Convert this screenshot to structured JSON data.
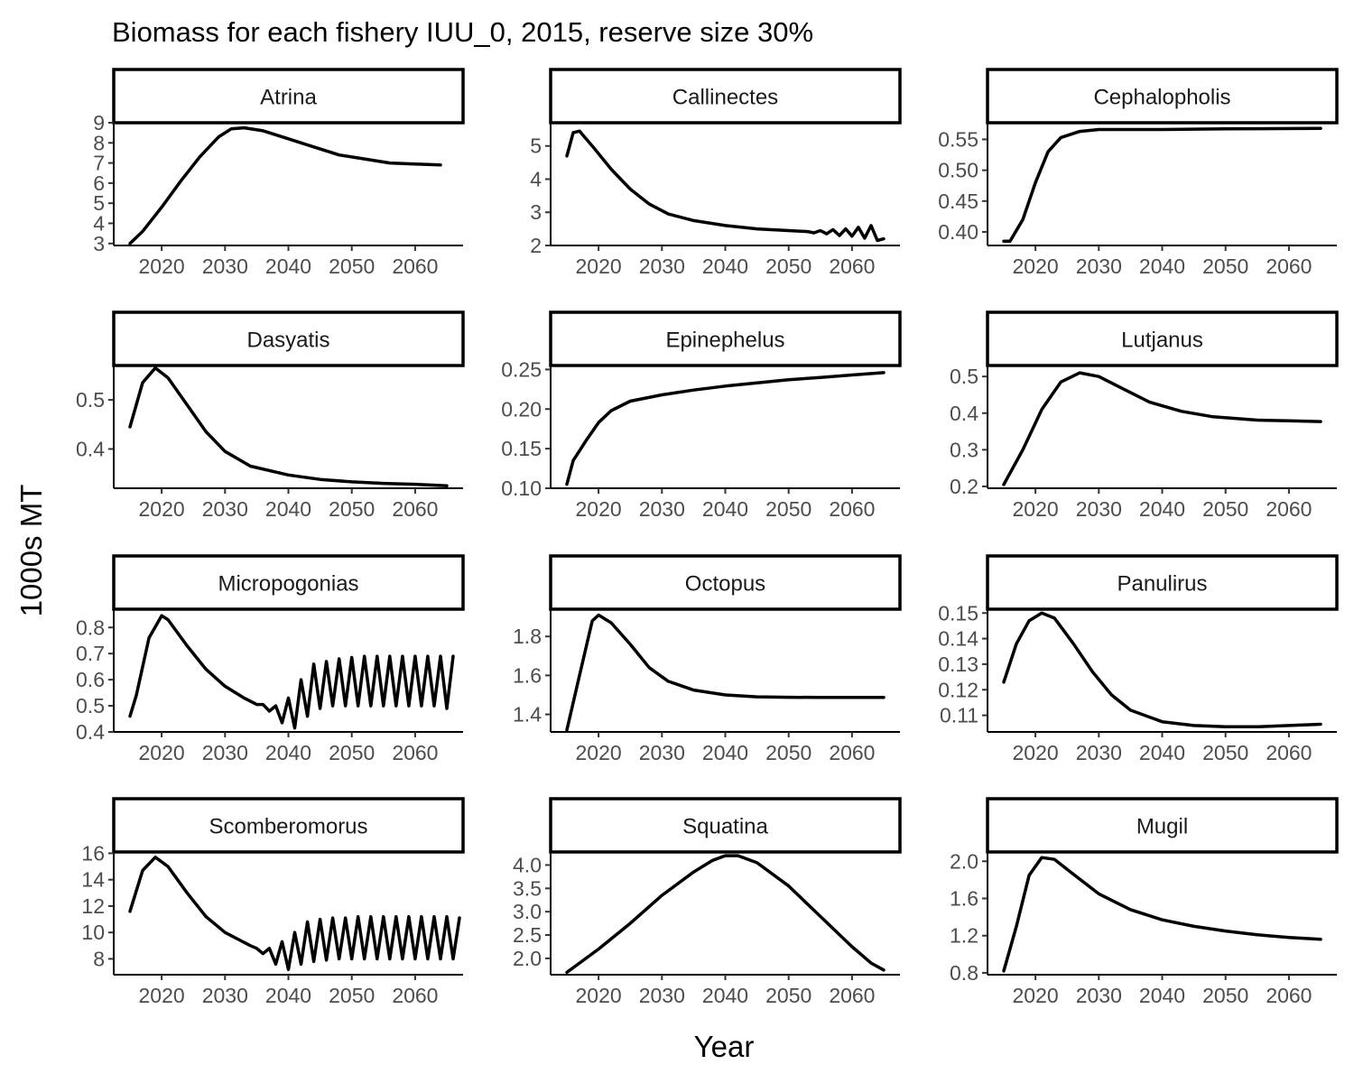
{
  "chart_data": {
    "type": "line",
    "title": "Biomass for each fishery IUU_0, 2015, reserve size 30%",
    "xlabel": "Year",
    "ylabel": "1000s MT",
    "x_ticks": [
      2020,
      2030,
      2040,
      2050,
      2060
    ],
    "xlim": [
      2015,
      2065
    ],
    "grid": false,
    "line_color": "#000000",
    "panels": [
      {
        "name": "Atrina",
        "ylim": [
          2.9,
          9.0
        ],
        "y_ticks": [
          3,
          4,
          5,
          6,
          7,
          8,
          9
        ],
        "y_tick_labels": [
          "3",
          "4",
          "5",
          "6",
          "7",
          "8",
          "9"
        ],
        "points": [
          [
            2015,
            3.0
          ],
          [
            2017,
            3.6
          ],
          [
            2020,
            4.8
          ],
          [
            2023,
            6.1
          ],
          [
            2026,
            7.3
          ],
          [
            2029,
            8.3
          ],
          [
            2031,
            8.7
          ],
          [
            2033,
            8.75
          ],
          [
            2036,
            8.6
          ],
          [
            2040,
            8.2
          ],
          [
            2044,
            7.8
          ],
          [
            2048,
            7.4
          ],
          [
            2052,
            7.2
          ],
          [
            2056,
            7.0
          ],
          [
            2060,
            6.95
          ],
          [
            2064,
            6.9
          ]
        ]
      },
      {
        "name": "Callinectes",
        "ylim": [
          2.0,
          5.7
        ],
        "y_ticks": [
          2,
          3,
          4,
          5
        ],
        "y_tick_labels": [
          "2",
          "3",
          "4",
          "5"
        ],
        "points": [
          [
            2015,
            4.7
          ],
          [
            2016,
            5.4
          ],
          [
            2017,
            5.45
          ],
          [
            2019,
            5.0
          ],
          [
            2022,
            4.3
          ],
          [
            2025,
            3.7
          ],
          [
            2028,
            3.25
          ],
          [
            2031,
            2.95
          ],
          [
            2035,
            2.75
          ],
          [
            2040,
            2.6
          ],
          [
            2045,
            2.5
          ],
          [
            2050,
            2.45
          ],
          [
            2053,
            2.42
          ],
          [
            2054,
            2.38
          ],
          [
            2055,
            2.45
          ],
          [
            2056,
            2.35
          ],
          [
            2057,
            2.48
          ],
          [
            2058,
            2.3
          ],
          [
            2059,
            2.5
          ],
          [
            2060,
            2.28
          ],
          [
            2061,
            2.55
          ],
          [
            2062,
            2.22
          ],
          [
            2063,
            2.6
          ],
          [
            2064,
            2.15
          ],
          [
            2065,
            2.2
          ]
        ]
      },
      {
        "name": "Cephalopholis",
        "ylim": [
          0.378,
          0.577
        ],
        "y_ticks": [
          0.4,
          0.45,
          0.5,
          0.55
        ],
        "y_tick_labels": [
          "0.40",
          "0.45",
          "0.50",
          "0.55"
        ],
        "points": [
          [
            2015,
            0.385
          ],
          [
            2016,
            0.385
          ],
          [
            2018,
            0.42
          ],
          [
            2020,
            0.48
          ],
          [
            2022,
            0.53
          ],
          [
            2024,
            0.553
          ],
          [
            2027,
            0.563
          ],
          [
            2030,
            0.566
          ],
          [
            2035,
            0.566
          ],
          [
            2040,
            0.566
          ],
          [
            2050,
            0.567
          ],
          [
            2065,
            0.568
          ]
        ]
      },
      {
        "name": "Dasyatis",
        "ylim": [
          0.32,
          0.57
        ],
        "y_ticks": [
          0.4,
          0.5
        ],
        "y_tick_labels": [
          "0.4",
          "0.5"
        ],
        "points": [
          [
            2015,
            0.445
          ],
          [
            2017,
            0.535
          ],
          [
            2019,
            0.565
          ],
          [
            2021,
            0.545
          ],
          [
            2024,
            0.49
          ],
          [
            2027,
            0.435
          ],
          [
            2030,
            0.395
          ],
          [
            2034,
            0.365
          ],
          [
            2040,
            0.347
          ],
          [
            2045,
            0.338
          ],
          [
            2050,
            0.333
          ],
          [
            2055,
            0.33
          ],
          [
            2060,
            0.328
          ],
          [
            2065,
            0.325
          ]
        ]
      },
      {
        "name": "Epinephelus",
        "ylim": [
          0.1,
          0.255
        ],
        "y_ticks": [
          0.1,
          0.15,
          0.2,
          0.25
        ],
        "y_tick_labels": [
          "0.10",
          "0.15",
          "0.20",
          "0.25"
        ],
        "points": [
          [
            2015,
            0.105
          ],
          [
            2016,
            0.135
          ],
          [
            2018,
            0.16
          ],
          [
            2020,
            0.183
          ],
          [
            2022,
            0.198
          ],
          [
            2025,
            0.21
          ],
          [
            2030,
            0.218
          ],
          [
            2035,
            0.224
          ],
          [
            2040,
            0.229
          ],
          [
            2045,
            0.233
          ],
          [
            2050,
            0.237
          ],
          [
            2055,
            0.24
          ],
          [
            2060,
            0.243
          ],
          [
            2065,
            0.246
          ]
        ]
      },
      {
        "name": "Lutjanus",
        "ylim": [
          0.195,
          0.53
        ],
        "y_ticks": [
          0.2,
          0.3,
          0.4,
          0.5
        ],
        "y_tick_labels": [
          "0.2",
          "0.3",
          "0.4",
          "0.5"
        ],
        "points": [
          [
            2015,
            0.205
          ],
          [
            2018,
            0.3
          ],
          [
            2021,
            0.41
          ],
          [
            2024,
            0.485
          ],
          [
            2027,
            0.51
          ],
          [
            2030,
            0.5
          ],
          [
            2034,
            0.465
          ],
          [
            2038,
            0.43
          ],
          [
            2043,
            0.405
          ],
          [
            2048,
            0.39
          ],
          [
            2055,
            0.381
          ],
          [
            2060,
            0.379
          ],
          [
            2065,
            0.377
          ]
        ]
      },
      {
        "name": "Micropogonias",
        "ylim": [
          0.4,
          0.87
        ],
        "y_ticks": [
          0.4,
          0.5,
          0.6,
          0.7,
          0.8
        ],
        "y_tick_labels": [
          "0.4",
          "0.5",
          "0.6",
          "0.7",
          "0.8"
        ],
        "points": [
          [
            2015,
            0.46
          ],
          [
            2016,
            0.54
          ],
          [
            2018,
            0.76
          ],
          [
            2020,
            0.845
          ],
          [
            2021,
            0.83
          ],
          [
            2024,
            0.73
          ],
          [
            2027,
            0.64
          ],
          [
            2030,
            0.575
          ],
          [
            2033,
            0.53
          ],
          [
            2035,
            0.505
          ],
          [
            2036,
            0.505
          ],
          [
            2037,
            0.48
          ],
          [
            2038,
            0.5
          ],
          [
            2039,
            0.435
          ],
          [
            2040,
            0.53
          ],
          [
            2041,
            0.415
          ],
          [
            2042,
            0.6
          ],
          [
            2043,
            0.46
          ],
          [
            2044,
            0.66
          ],
          [
            2045,
            0.49
          ],
          [
            2046,
            0.67
          ],
          [
            2047,
            0.5
          ],
          [
            2048,
            0.68
          ],
          [
            2049,
            0.5
          ],
          [
            2050,
            0.685
          ],
          [
            2051,
            0.5
          ],
          [
            2052,
            0.69
          ],
          [
            2053,
            0.5
          ],
          [
            2054,
            0.69
          ],
          [
            2055,
            0.5
          ],
          [
            2056,
            0.69
          ],
          [
            2057,
            0.5
          ],
          [
            2058,
            0.69
          ],
          [
            2059,
            0.5
          ],
          [
            2060,
            0.69
          ],
          [
            2061,
            0.5
          ],
          [
            2062,
            0.69
          ],
          [
            2063,
            0.5
          ],
          [
            2064,
            0.69
          ],
          [
            2065,
            0.49
          ],
          [
            2066,
            0.69
          ]
        ]
      },
      {
        "name": "Octopus",
        "ylim": [
          1.31,
          1.94
        ],
        "y_ticks": [
          1.4,
          1.6,
          1.8
        ],
        "y_tick_labels": [
          "1.4",
          "1.6",
          "1.8"
        ],
        "points": [
          [
            2015,
            1.32
          ],
          [
            2017,
            1.6
          ],
          [
            2019,
            1.88
          ],
          [
            2020,
            1.91
          ],
          [
            2022,
            1.87
          ],
          [
            2025,
            1.76
          ],
          [
            2028,
            1.64
          ],
          [
            2031,
            1.57
          ],
          [
            2035,
            1.525
          ],
          [
            2040,
            1.5
          ],
          [
            2045,
            1.49
          ],
          [
            2050,
            1.488
          ],
          [
            2055,
            1.487
          ],
          [
            2060,
            1.487
          ],
          [
            2065,
            1.487
          ]
        ]
      },
      {
        "name": "Panulirus",
        "ylim": [
          0.1035,
          0.1515
        ],
        "y_ticks": [
          0.11,
          0.12,
          0.13,
          0.14,
          0.15
        ],
        "y_tick_labels": [
          "0.11",
          "0.12",
          "0.13",
          "0.14",
          "0.15"
        ],
        "points": [
          [
            2015,
            0.123
          ],
          [
            2017,
            0.138
          ],
          [
            2019,
            0.147
          ],
          [
            2021,
            0.15
          ],
          [
            2023,
            0.148
          ],
          [
            2026,
            0.138
          ],
          [
            2029,
            0.127
          ],
          [
            2032,
            0.118
          ],
          [
            2035,
            0.112
          ],
          [
            2040,
            0.1075
          ],
          [
            2045,
            0.106
          ],
          [
            2050,
            0.1055
          ],
          [
            2055,
            0.1055
          ],
          [
            2060,
            0.106
          ],
          [
            2065,
            0.1065
          ]
        ]
      },
      {
        "name": "Scomberomorus",
        "ylim": [
          6.8,
          16.1
        ],
        "y_ticks": [
          8,
          10,
          12,
          14,
          16
        ],
        "y_tick_labels": [
          "8",
          "10",
          "12",
          "14",
          "16"
        ],
        "points": [
          [
            2015,
            11.6
          ],
          [
            2017,
            14.7
          ],
          [
            2019,
            15.7
          ],
          [
            2021,
            15.0
          ],
          [
            2024,
            13.0
          ],
          [
            2027,
            11.2
          ],
          [
            2030,
            10.0
          ],
          [
            2032,
            9.5
          ],
          [
            2034,
            9.0
          ],
          [
            2035,
            8.8
          ],
          [
            2036,
            8.4
          ],
          [
            2037,
            8.8
          ],
          [
            2038,
            7.6
          ],
          [
            2039,
            9.3
          ],
          [
            2040,
            7.2
          ],
          [
            2041,
            10.0
          ],
          [
            2042,
            7.6
          ],
          [
            2043,
            10.8
          ],
          [
            2044,
            7.8
          ],
          [
            2045,
            11.0
          ],
          [
            2046,
            7.9
          ],
          [
            2047,
            11.1
          ],
          [
            2048,
            8.0
          ],
          [
            2049,
            11.1
          ],
          [
            2050,
            8.0
          ],
          [
            2051,
            11.2
          ],
          [
            2052,
            8.0
          ],
          [
            2053,
            11.2
          ],
          [
            2054,
            8.0
          ],
          [
            2055,
            11.2
          ],
          [
            2056,
            8.0
          ],
          [
            2057,
            11.2
          ],
          [
            2058,
            8.0
          ],
          [
            2059,
            11.2
          ],
          [
            2060,
            8.0
          ],
          [
            2061,
            11.2
          ],
          [
            2062,
            8.0
          ],
          [
            2063,
            11.2
          ],
          [
            2064,
            8.0
          ],
          [
            2065,
            11.2
          ],
          [
            2066,
            8.0
          ],
          [
            2067,
            11.1
          ]
        ]
      },
      {
        "name": "Squatina",
        "ylim": [
          1.65,
          4.28
        ],
        "y_ticks": [
          2.0,
          2.5,
          3.0,
          3.5,
          4.0
        ],
        "y_tick_labels": [
          "2.0",
          "2.5",
          "3.0",
          "3.5",
          "4.0"
        ],
        "points": [
          [
            2015,
            1.7
          ],
          [
            2020,
            2.2
          ],
          [
            2025,
            2.75
          ],
          [
            2030,
            3.35
          ],
          [
            2035,
            3.85
          ],
          [
            2038,
            4.1
          ],
          [
            2040,
            4.2
          ],
          [
            2042,
            4.2
          ],
          [
            2045,
            4.05
          ],
          [
            2050,
            3.55
          ],
          [
            2055,
            2.9
          ],
          [
            2060,
            2.25
          ],
          [
            2063,
            1.9
          ],
          [
            2065,
            1.75
          ]
        ]
      },
      {
        "name": "Mugil",
        "ylim": [
          0.78,
          2.1
        ],
        "y_ticks": [
          0.8,
          1.2,
          1.6,
          2.0
        ],
        "y_tick_labels": [
          "0.8",
          "1.2",
          "1.6",
          "2.0"
        ],
        "points": [
          [
            2015,
            0.82
          ],
          [
            2017,
            1.3
          ],
          [
            2019,
            1.85
          ],
          [
            2021,
            2.04
          ],
          [
            2023,
            2.02
          ],
          [
            2026,
            1.86
          ],
          [
            2030,
            1.65
          ],
          [
            2035,
            1.48
          ],
          [
            2040,
            1.37
          ],
          [
            2045,
            1.3
          ],
          [
            2050,
            1.25
          ],
          [
            2055,
            1.21
          ],
          [
            2060,
            1.18
          ],
          [
            2065,
            1.16
          ]
        ]
      }
    ]
  }
}
